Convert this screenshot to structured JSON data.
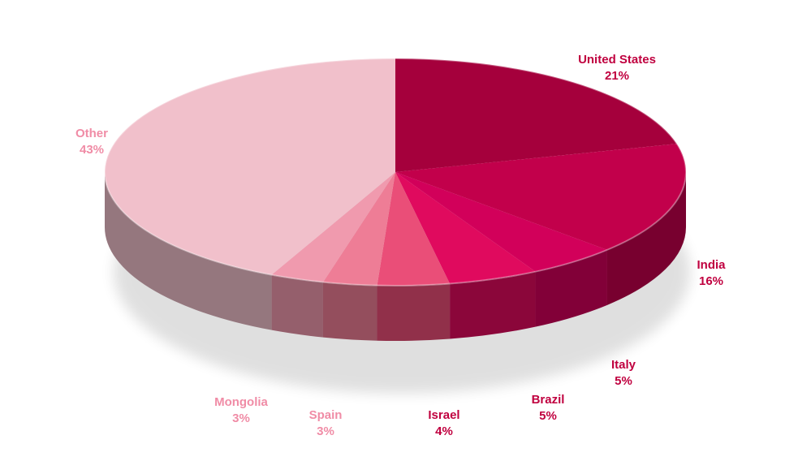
{
  "chart_data": {
    "type": "pie",
    "title": "",
    "style": "3d",
    "slices": [
      {
        "label": "United States",
        "pct_label": "21%",
        "value": 21,
        "color": "#A5003C",
        "label_color": "#C0003F"
      },
      {
        "label": "India",
        "pct_label": "16%",
        "value": 16,
        "color": "#C2004B",
        "label_color": "#C0003F"
      },
      {
        "label": "Italy",
        "pct_label": "5%",
        "value": 5,
        "color": "#D2005A",
        "label_color": "#C0003F"
      },
      {
        "label": "Brazil",
        "pct_label": "5%",
        "value": 5,
        "color": "#E00A5E",
        "label_color": "#C0003F"
      },
      {
        "label": "Israel",
        "pct_label": "4%",
        "value": 4,
        "color": "#EA4E78",
        "label_color": "#C0003F"
      },
      {
        "label": "Spain",
        "pct_label": "3%",
        "value": 3,
        "color": "#EE7D96",
        "label_color": "#F08CA6"
      },
      {
        "label": "Mongolia",
        "pct_label": "3%",
        "value": 3,
        "color": "#F09AAE",
        "label_color": "#F08CA6"
      },
      {
        "label": "Other",
        "pct_label": "43%",
        "value": 43,
        "color": "#F1C0CB",
        "label_color": "#F08CA6"
      }
    ]
  }
}
